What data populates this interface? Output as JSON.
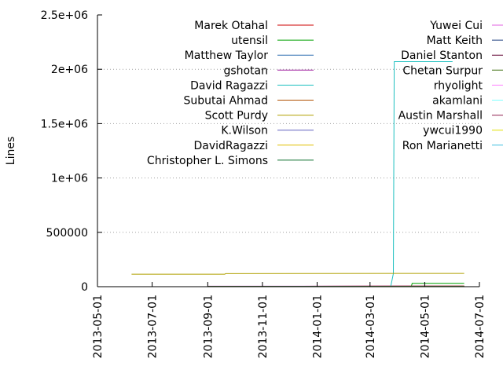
{
  "chart_data": {
    "type": "line",
    "xlabel": "",
    "ylabel": "Lines",
    "ylim": [
      0,
      2500000
    ],
    "xlim": [
      "2013-05-01",
      "2014-07-01"
    ],
    "x_ticks": [
      "2013-05-01",
      "2013-07-01",
      "2013-09-01",
      "2013-11-01",
      "2014-01-01",
      "2014-03-01",
      "2014-05-01",
      "2014-07-01"
    ],
    "y_ticks": [
      {
        "value": 0,
        "label": "0"
      },
      {
        "value": 500000,
        "label": "500000"
      },
      {
        "value": 1000000,
        "label": "1e+06"
      },
      {
        "value": 1500000,
        "label": "1.5e+06"
      },
      {
        "value": 2000000,
        "label": "2e+06"
      },
      {
        "value": 2500000,
        "label": "2.5e+06"
      }
    ],
    "grid": "horizontal dotted",
    "legend_placement": "top, two columns",
    "series": [
      {
        "name": "Marek Otahal",
        "color": "#cc0000",
        "points": [
          [
            "2013-09-01",
            3000
          ],
          [
            "2014-06-14",
            6000
          ]
        ]
      },
      {
        "name": "utensil",
        "color": "#00a000",
        "points": [
          [
            "2013-09-01",
            0
          ],
          [
            "2014-04-16",
            0
          ],
          [
            "2014-04-17",
            30000
          ],
          [
            "2014-06-14",
            30000
          ]
        ]
      },
      {
        "name": "Matthew Taylor",
        "color": "#2f6fb0",
        "points": [
          [
            "2013-09-01",
            2000
          ],
          [
            "2014-06-14",
            5000
          ]
        ]
      },
      {
        "name": "gshotan",
        "color": "#a020a0",
        "points": [
          [
            "2013-09-01",
            4000
          ],
          [
            "2014-06-14",
            6000
          ]
        ]
      },
      {
        "name": "David Ragazzi",
        "color": "#20c0c0",
        "points": [
          [
            "2013-09-01",
            0
          ],
          [
            "2014-03-24",
            0
          ],
          [
            "2014-03-27",
            120000
          ],
          [
            "2014-03-28",
            2070000
          ],
          [
            "2014-06-01",
            2070000
          ]
        ]
      },
      {
        "name": "Subutai Ahmad",
        "color": "#b05000",
        "points": [
          [
            "2013-09-01",
            3000
          ],
          [
            "2014-06-14",
            5000
          ]
        ]
      },
      {
        "name": "Scott Purdy",
        "color": "#b0a000",
        "points": [
          [
            "2013-06-08",
            115000
          ],
          [
            "2013-09-20",
            115000
          ],
          [
            "2013-09-21",
            120000
          ],
          [
            "2014-06-14",
            122000
          ]
        ]
      },
      {
        "name": "K.Wilson",
        "color": "#6060c0",
        "points": [
          [
            "2013-09-01",
            2000
          ],
          [
            "2014-06-14",
            3000
          ]
        ]
      },
      {
        "name": "DavidRagazzi",
        "color": "#e0c000",
        "points": [
          [
            "2013-09-01",
            1000
          ],
          [
            "2014-06-14",
            2000
          ]
        ]
      },
      {
        "name": "Christopher L. Simons",
        "color": "#107030",
        "points": [
          [
            "2013-09-01",
            1500
          ],
          [
            "2014-06-14",
            2500
          ]
        ]
      },
      {
        "name": "Yuwei Cui",
        "color": "#e060e0",
        "points": []
      },
      {
        "name": "Matt Keith",
        "color": "#204080",
        "points": []
      },
      {
        "name": "Daniel Stanton",
        "color": "#600030",
        "points": []
      },
      {
        "name": "Chetan Surpur",
        "color": "#407010",
        "points": []
      },
      {
        "name": "rhyolight",
        "color": "#ff80ff",
        "points": []
      },
      {
        "name": "akamlani",
        "color": "#80ffff",
        "points": []
      },
      {
        "name": "Austin Marshall",
        "color": "#902050",
        "points": []
      },
      {
        "name": "ywcui1990",
        "color": "#e0e000",
        "points": []
      },
      {
        "name": "Ron Marianetti",
        "color": "#40c0e0",
        "points": []
      }
    ]
  }
}
